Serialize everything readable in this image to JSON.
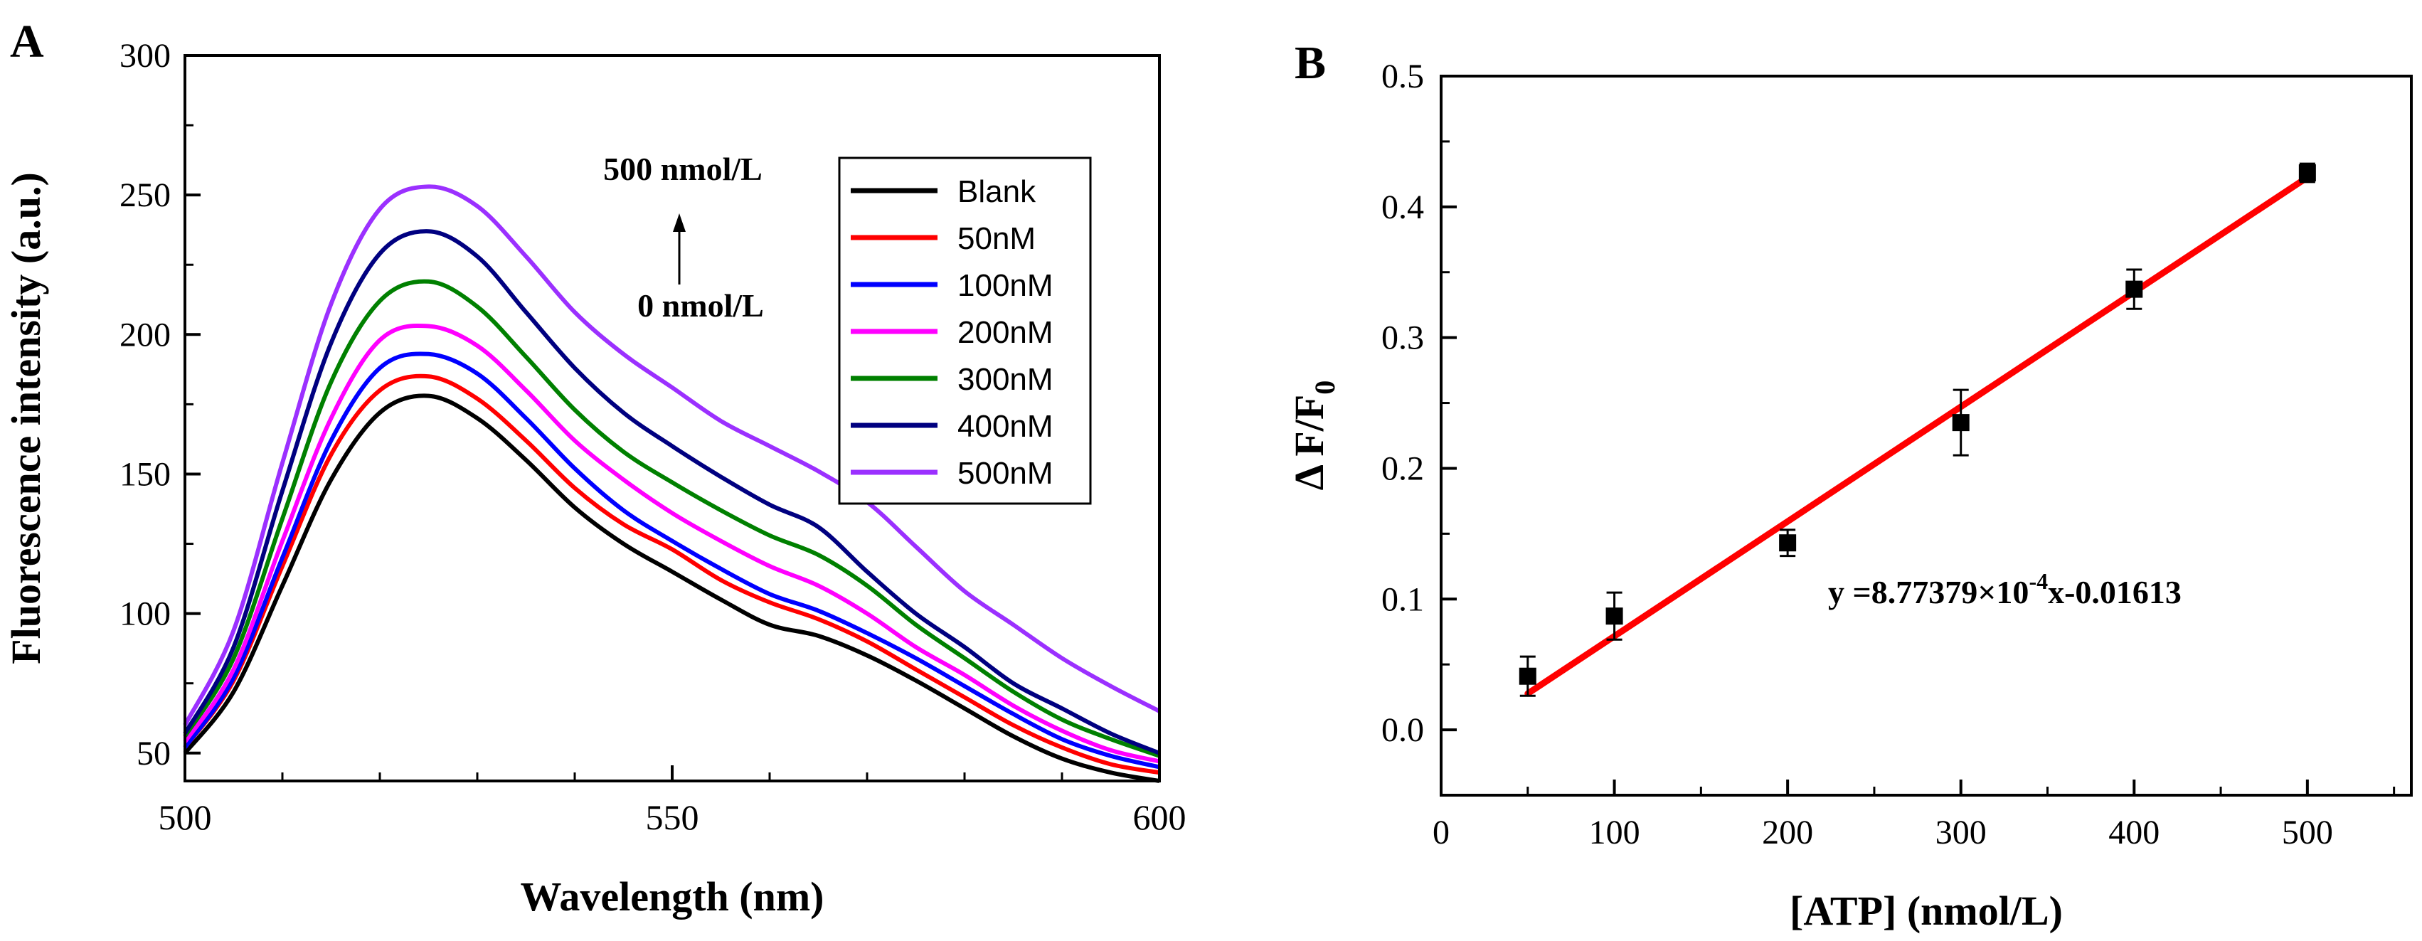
{
  "chart_data": [
    {
      "type": "line",
      "panel_label": "A",
      "xlabel": "Wavelength (nm)",
      "ylabel": "Fluorescence intensity (a.u.)",
      "xlim": [
        500,
        600
      ],
      "ylim": [
        40,
        300
      ],
      "xticks": [
        500,
        550,
        600
      ],
      "yticks": [
        50,
        100,
        150,
        200,
        250,
        300
      ],
      "grid": false,
      "legend_position": "top-right",
      "annotations": {
        "upper": "500 nmol/L",
        "lower": "0 nmol/L"
      },
      "x": [
        500,
        505,
        510,
        515,
        520,
        525,
        530,
        535,
        540,
        545,
        550,
        555,
        560,
        565,
        570,
        575,
        580,
        585,
        590,
        595,
        600
      ],
      "series": [
        {
          "name": "Blank",
          "color": "#000000",
          "values": [
            50,
            72,
            110,
            148,
            172,
            178,
            170,
            155,
            138,
            125,
            115,
            105,
            96,
            92,
            85,
            76,
            66,
            56,
            48,
            43,
            40
          ]
        },
        {
          "name": "50nM",
          "color": "#ff0000",
          "values": [
            52,
            76,
            117,
            157,
            180,
            185,
            177,
            162,
            145,
            132,
            123,
            112,
            104,
            98,
            90,
            80,
            70,
            60,
            52,
            46,
            43
          ]
        },
        {
          "name": "100nM",
          "color": "#0000ff",
          "values": [
            52,
            77,
            120,
            162,
            188,
            193,
            186,
            170,
            152,
            137,
            126,
            116,
            107,
            101,
            93,
            84,
            74,
            64,
            55,
            49,
            45
          ]
        },
        {
          "name": "200nM",
          "color": "#ff00ff",
          "values": [
            54,
            80,
            126,
            170,
            198,
            203,
            196,
            180,
            162,
            148,
            136,
            126,
            117,
            110,
            100,
            88,
            78,
            67,
            58,
            51,
            47
          ]
        },
        {
          "name": "300nM",
          "color": "#008000",
          "values": [
            56,
            84,
            134,
            183,
            212,
            219,
            210,
            192,
            173,
            158,
            147,
            137,
            128,
            121,
            110,
            96,
            84,
            72,
            62,
            55,
            49
          ]
        },
        {
          "name": "400nM",
          "color": "#000080",
          "values": [
            57,
            88,
            144,
            197,
            229,
            237,
            228,
            208,
            188,
            172,
            160,
            149,
            139,
            131,
            115,
            100,
            88,
            75,
            66,
            57,
            50
          ]
        },
        {
          "name": "500nM",
          "color": "#9b30ff",
          "values": [
            60,
            94,
            154,
            211,
            245,
            253,
            246,
            228,
            208,
            193,
            181,
            169,
            160,
            151,
            140,
            124,
            108,
            96,
            84,
            74,
            65
          ]
        }
      ]
    },
    {
      "type": "scatter",
      "panel_label": "B",
      "xlabel": "[ATP] (nmol/L)",
      "ylabel_parts": {
        "main": "Δ F/F",
        "sub": "0"
      },
      "xlim": [
        0,
        560
      ],
      "ylim": [
        -0.05,
        0.5
      ],
      "xticks": [
        0,
        100,
        200,
        300,
        400,
        500
      ],
      "yticks": [
        0.0,
        0.1,
        0.2,
        0.3,
        0.4,
        0.5
      ],
      "ytick_labels": [
        "0.0",
        "0.1",
        "0.2",
        "0.3",
        "0.4",
        "0.5"
      ],
      "grid": false,
      "points": [
        {
          "x": 50,
          "y": 0.041,
          "err": 0.015
        },
        {
          "x": 100,
          "y": 0.087,
          "err": 0.018
        },
        {
          "x": 200,
          "y": 0.143,
          "err": 0.01
        },
        {
          "x": 300,
          "y": 0.235,
          "err": 0.025
        },
        {
          "x": 400,
          "y": 0.337,
          "err": 0.015
        },
        {
          "x": 500,
          "y": 0.426,
          "err": 0.007
        }
      ],
      "fit": {
        "slope": 0.000877379,
        "intercept": -0.01613,
        "x_range": [
          50,
          500
        ],
        "color": "#ff0000"
      },
      "equation": {
        "lhs": "y =8.77379×10",
        "exp": "-4",
        "rhs": "x-0.01613"
      }
    }
  ]
}
